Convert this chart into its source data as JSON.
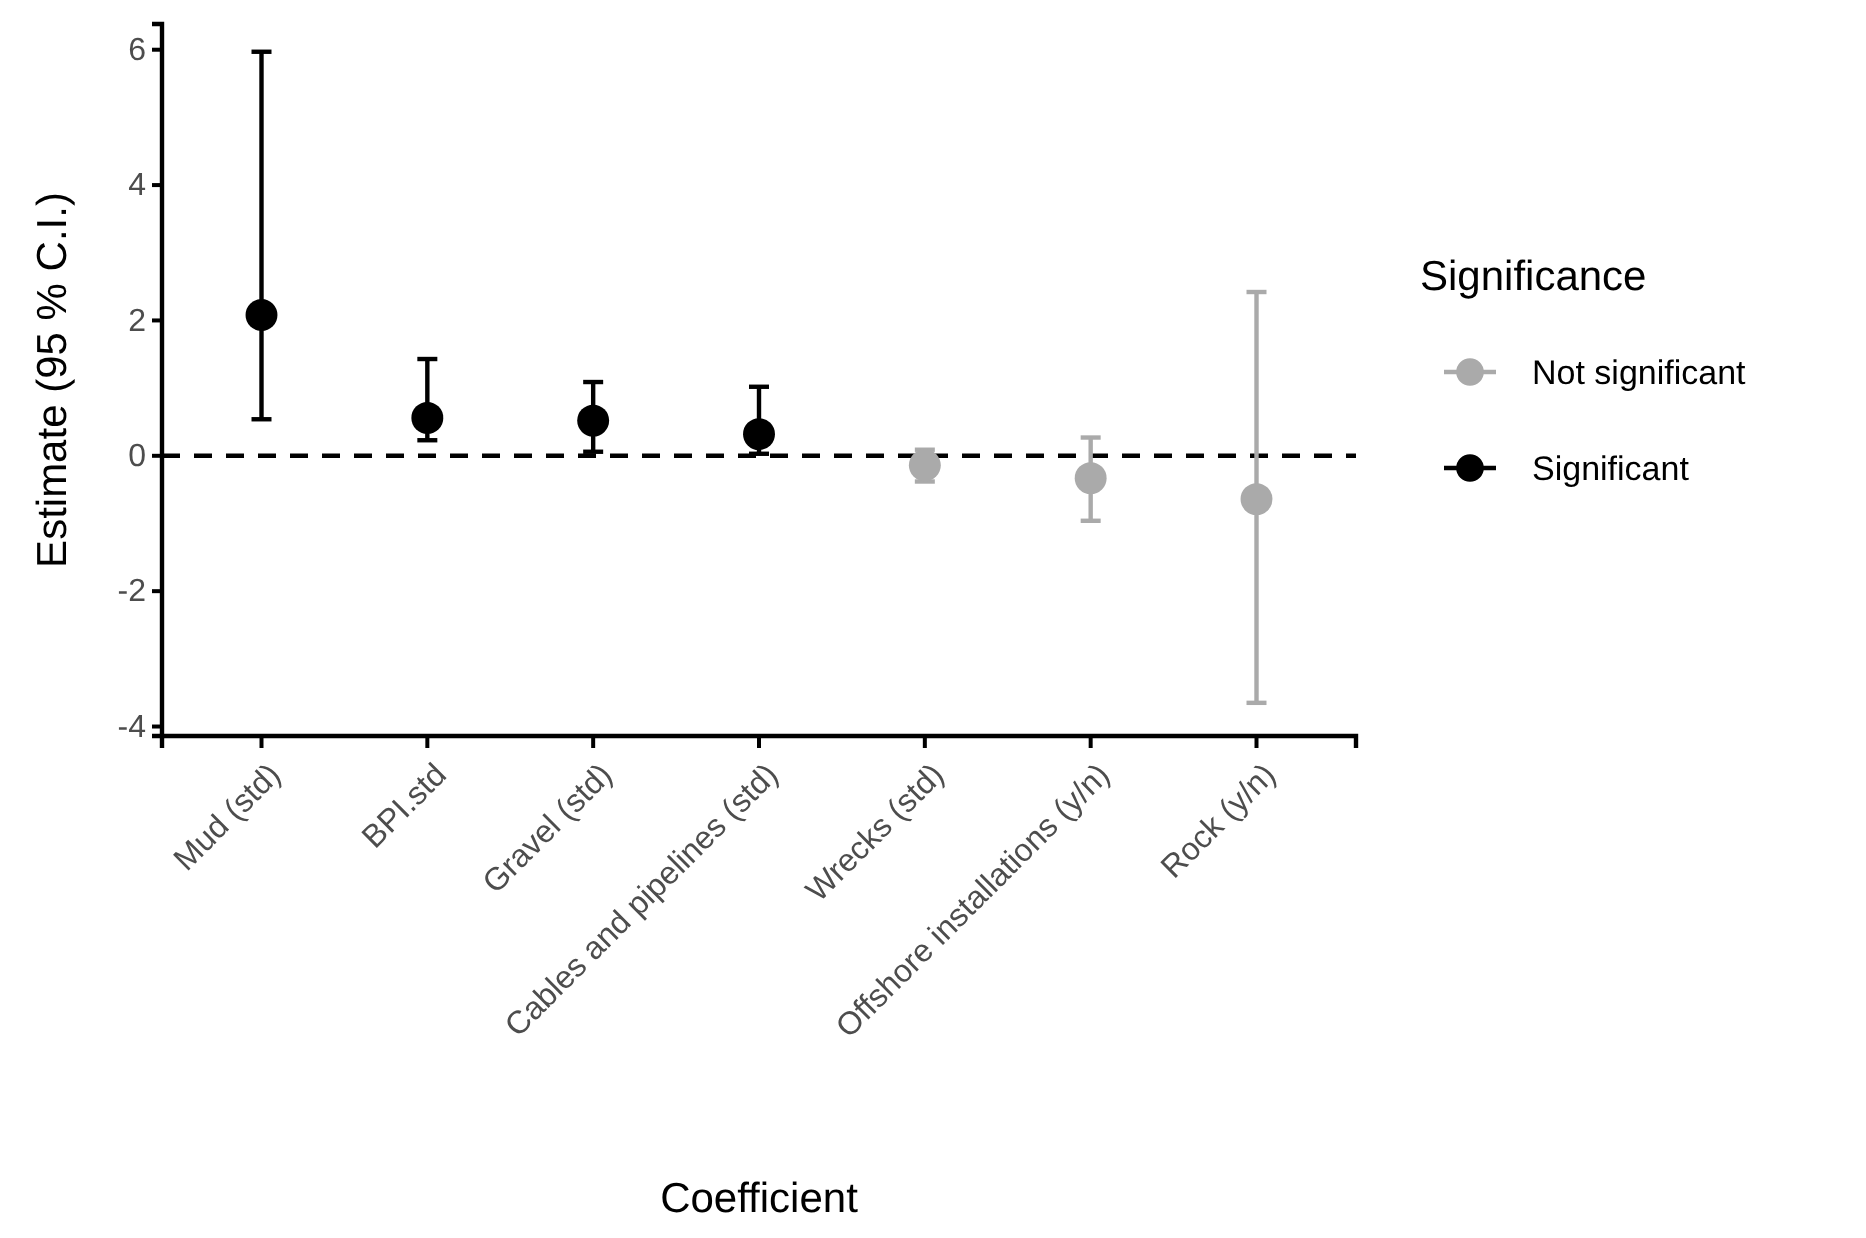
{
  "chart_data": {
    "type": "scatter",
    "xlabel": "Coefficient",
    "ylabel": "Estimate (95 % C.I.)",
    "legend_title": "Significance",
    "categories": [
      "Mud (std)",
      "BPI.std",
      "Gravel (std)",
      "Cables and pipelines (std)",
      "Wrecks (std)",
      "Offshore installations (y/n)",
      "Rock (y/n)"
    ],
    "series": [
      {
        "name": "Not significant",
        "color": "#aaaaaa",
        "values": [
          null,
          null,
          null,
          null,
          -0.14,
          -0.33,
          -0.64
        ],
        "errors": [
          null,
          null,
          null,
          null,
          [
            -0.38,
            0.09
          ],
          [
            -0.96,
            0.27
          ],
          [
            -3.65,
            2.42
          ]
        ]
      },
      {
        "name": "Significant",
        "color": "#000000",
        "values": [
          2.08,
          0.56,
          0.52,
          0.32,
          null,
          null,
          null
        ],
        "errors": [
          [
            0.54,
            5.97
          ],
          [
            0.23,
            1.43
          ],
          [
            0.06,
            1.09
          ],
          [
            0.03,
            1.02
          ],
          null,
          null,
          null
        ]
      }
    ],
    "ylim": [
      -4.14,
      6.38
    ],
    "yticks": [
      -4,
      -2,
      0,
      2,
      4,
      6
    ],
    "ref_lines": [
      {
        "axis": "y",
        "value": 0,
        "line_style": "dashed",
        "color": "#000000"
      }
    ],
    "marker": "circle",
    "legend": "right",
    "grid": false
  }
}
